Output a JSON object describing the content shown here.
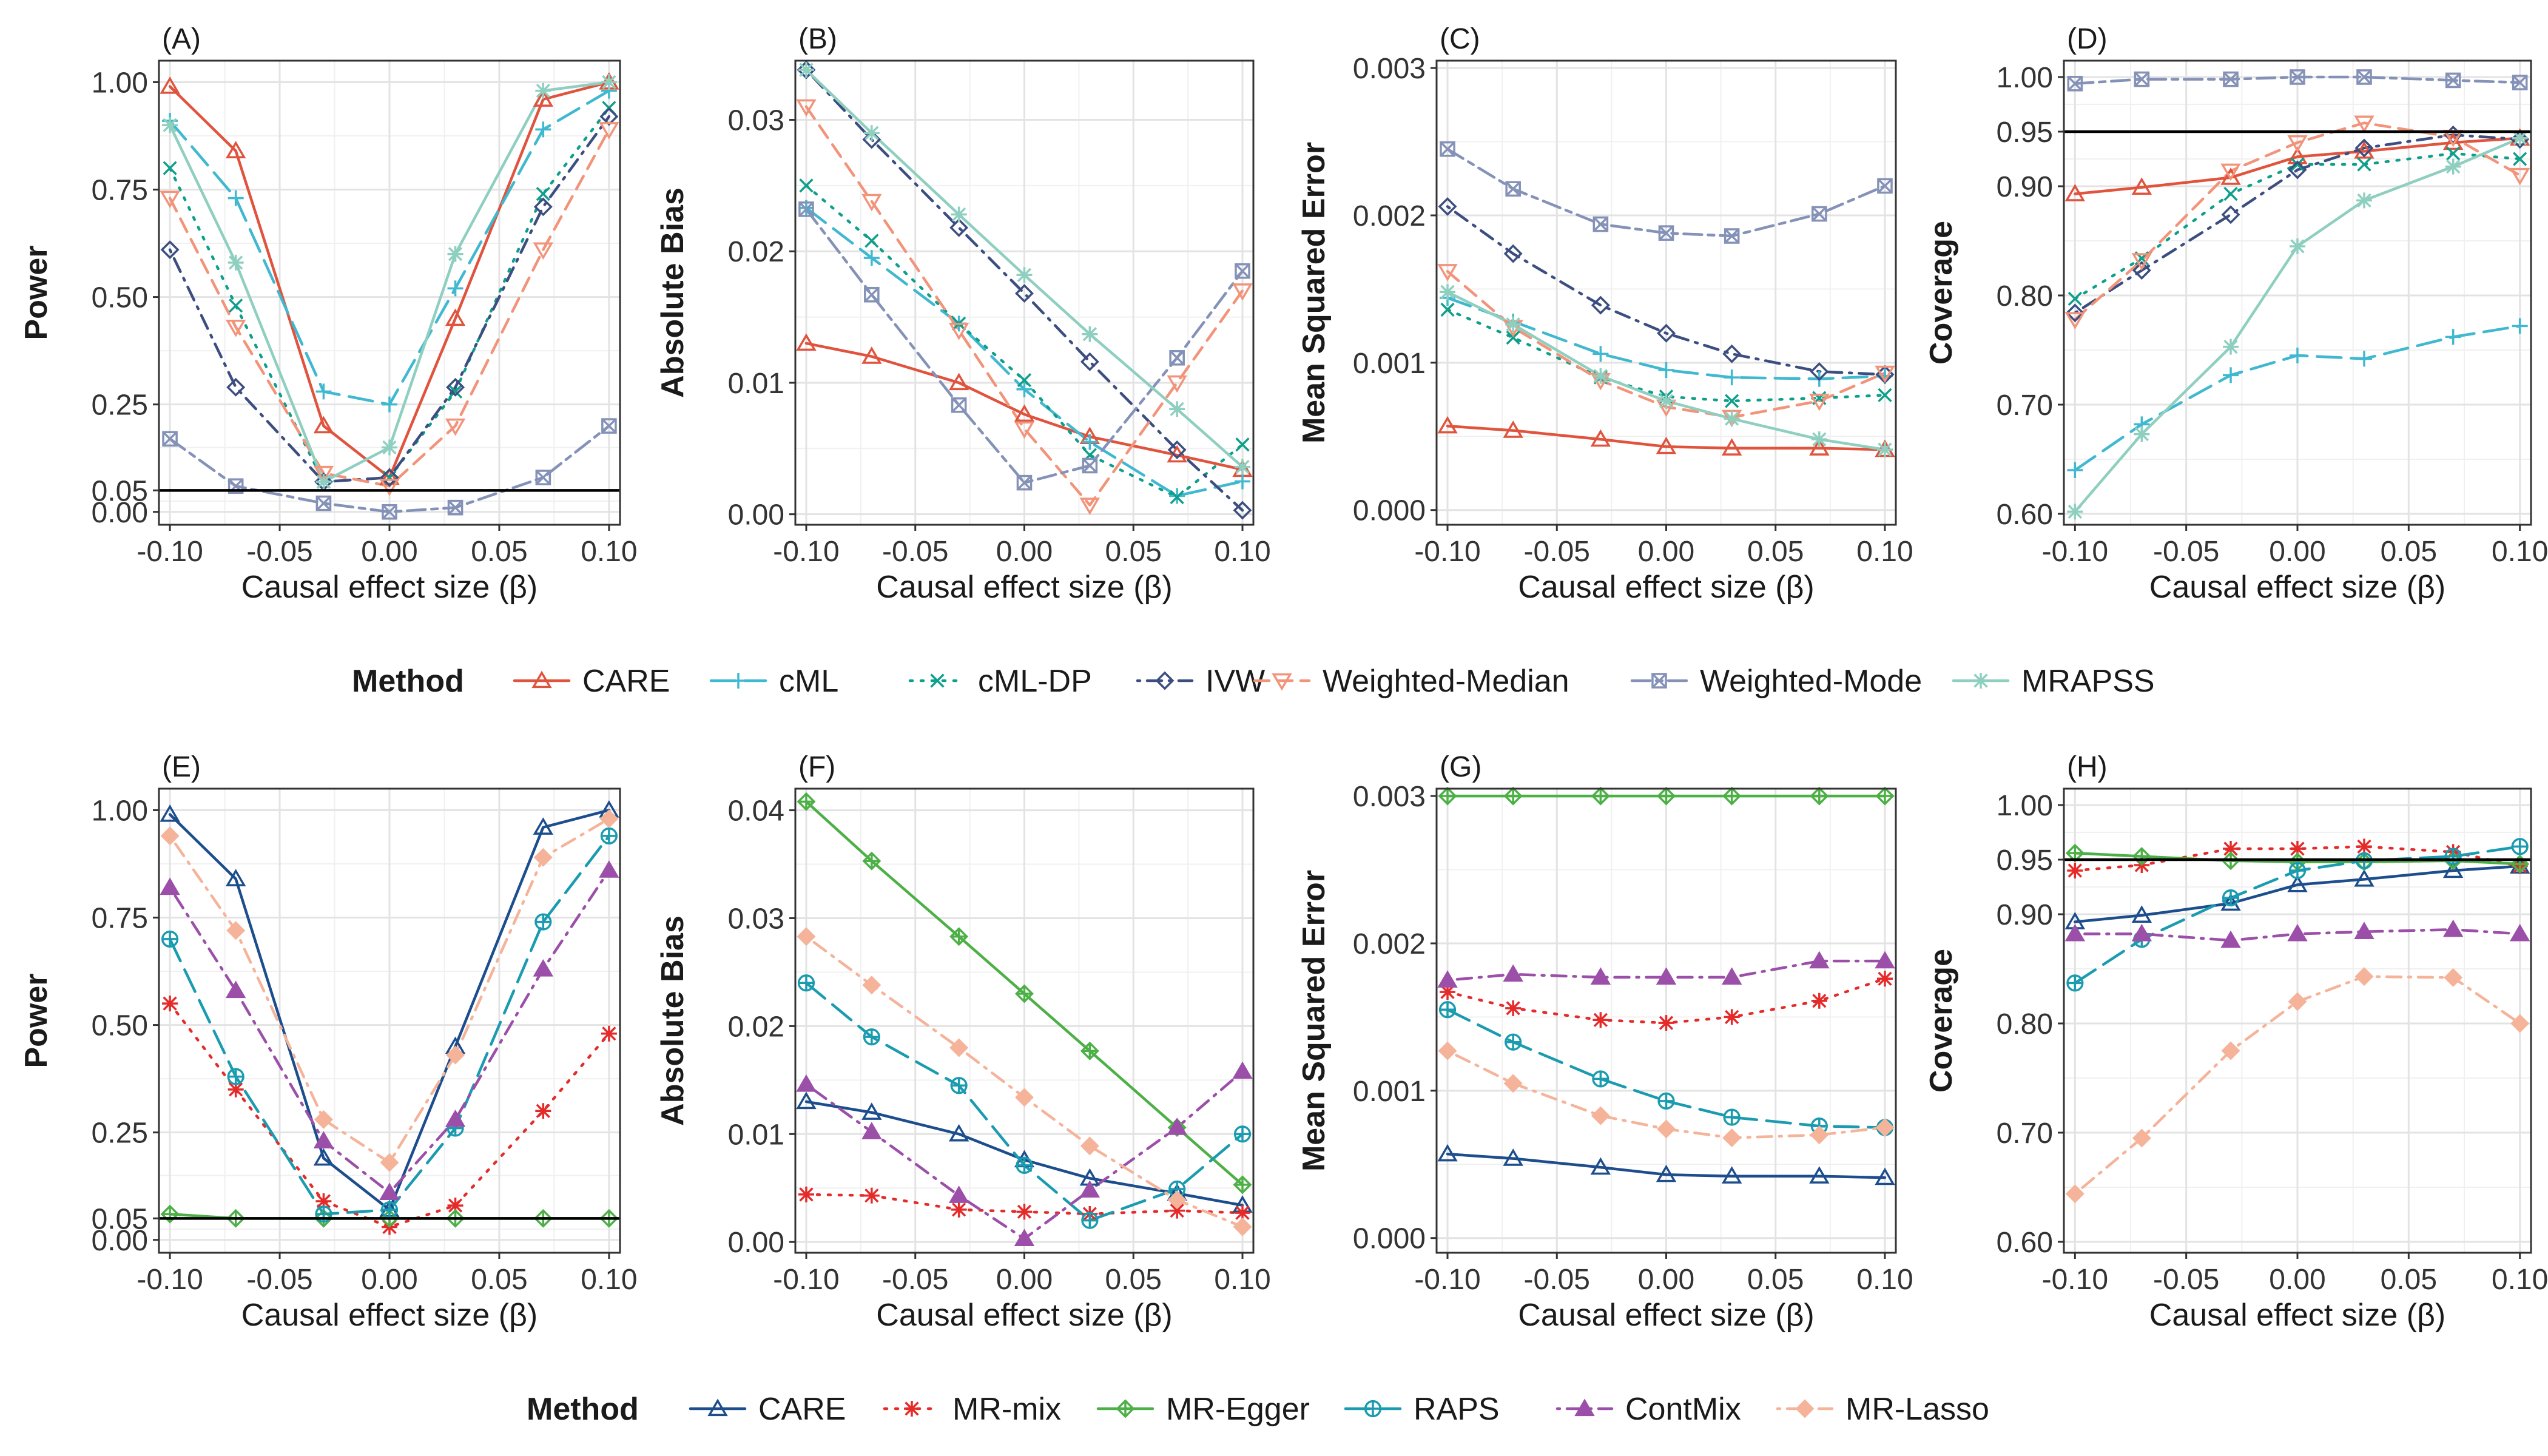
{
  "x_values": [
    -0.1,
    -0.07,
    -0.03,
    0.0,
    0.03,
    0.07,
    0.1
  ],
  "legends": [
    {
      "title": "Method",
      "entries": [
        {
          "name": "CARE",
          "color": "#E0533D",
          "dash": "solid",
          "marker": "triangle-open"
        },
        {
          "name": "cML",
          "color": "#3FB8D0",
          "dash": "longdash",
          "marker": "plus"
        },
        {
          "name": "cML-DP",
          "color": "#0E9F8A",
          "dash": "dotted",
          "marker": "cross"
        },
        {
          "name": "IVW",
          "color": "#3C4E80",
          "dash": "dotdash",
          "marker": "diamond-open"
        },
        {
          "name": "Weighted-Median",
          "color": "#F2937A",
          "dash": "dashed",
          "marker": "triangle-down-open"
        },
        {
          "name": "Weighted-Mode",
          "color": "#8592B8",
          "dash": "twodash",
          "marker": "square-cross"
        },
        {
          "name": "MRAPSS",
          "color": "#8ECFC0",
          "dash": "solid",
          "marker": "asterisk"
        }
      ]
    },
    {
      "title": "Method",
      "entries": [
        {
          "name": "CARE",
          "color": "#1C4D8C",
          "dash": "solid",
          "marker": "triangle-open"
        },
        {
          "name": "MR-mix",
          "color": "#E52A2A",
          "dash": "dotted",
          "marker": "asterisk"
        },
        {
          "name": "MR-Egger",
          "color": "#4DB046",
          "dash": "solid",
          "marker": "diamond-plus"
        },
        {
          "name": "RAPS",
          "color": "#1A9BB0",
          "dash": "longdash",
          "marker": "circle-plus"
        },
        {
          "name": "ContMix",
          "color": "#9B4FA8",
          "dash": "dotdash",
          "marker": "triangle-filled"
        },
        {
          "name": "MR-Lasso",
          "color": "#F5B39A",
          "dash": "dotdash",
          "marker": "diamond-filled"
        }
      ]
    }
  ],
  "chart_data": [
    {
      "type": "line",
      "tag": "(A)",
      "xlabel": "Causal effect size (β)",
      "ylabel": "Power",
      "xlim": [
        -0.105,
        0.105
      ],
      "ylim": [
        -0.03,
        1.05
      ],
      "xticks": [
        -0.1,
        -0.05,
        0.0,
        0.05,
        0.1
      ],
      "xtick_labels": [
        "-0.10",
        "-0.05",
        "0.00",
        "0.05",
        "0.10"
      ],
      "yticks": [
        0.0,
        0.05,
        0.25,
        0.5,
        0.75,
        1.0
      ],
      "ytick_labels": [
        "0.00",
        "0.05",
        "0.25",
        "0.50",
        "0.75",
        "1.00"
      ],
      "hline": 0.05,
      "legend_group": 0,
      "series": [
        {
          "name": "CARE",
          "values": [
            0.99,
            0.84,
            0.2,
            0.08,
            0.45,
            0.96,
            1.0
          ]
        },
        {
          "name": "cML",
          "values": [
            0.91,
            0.73,
            0.28,
            0.25,
            0.52,
            0.89,
            0.98
          ]
        },
        {
          "name": "cML-DP",
          "values": [
            0.8,
            0.48,
            0.07,
            0.08,
            0.28,
            0.74,
            0.94
          ]
        },
        {
          "name": "IVW",
          "values": [
            0.61,
            0.29,
            0.07,
            0.08,
            0.29,
            0.71,
            0.92
          ]
        },
        {
          "name": "Weighted-Median",
          "values": [
            0.73,
            0.43,
            0.09,
            0.06,
            0.2,
            0.61,
            0.89
          ]
        },
        {
          "name": "Weighted-Mode",
          "values": [
            0.17,
            0.06,
            0.02,
            0.0,
            0.01,
            0.08,
            0.2
          ]
        },
        {
          "name": "MRAPSS",
          "values": [
            0.9,
            0.58,
            0.07,
            0.15,
            0.6,
            0.98,
            1.0
          ]
        }
      ]
    },
    {
      "type": "line",
      "tag": "(B)",
      "xlabel": "Causal effect size (β)",
      "ylabel": "Absolute Bias",
      "xlim": [
        -0.105,
        0.105
      ],
      "ylim": [
        -0.0008,
        0.0345
      ],
      "xticks": [
        -0.1,
        -0.05,
        0.0,
        0.05,
        0.1
      ],
      "xtick_labels": [
        "-0.10",
        "-0.05",
        "0.00",
        "0.05",
        "0.10"
      ],
      "yticks": [
        0.0,
        0.01,
        0.02,
        0.03
      ],
      "ytick_labels": [
        "0.00",
        "0.01",
        "0.02",
        "0.03"
      ],
      "hline": null,
      "legend_group": 0,
      "series": [
        {
          "name": "CARE",
          "values": [
            0.013,
            0.012,
            0.01,
            0.0076,
            0.0059,
            0.0045,
            0.0034
          ]
        },
        {
          "name": "cML",
          "values": [
            0.0233,
            0.0195,
            0.0145,
            0.0095,
            0.0055,
            0.0014,
            0.0025
          ]
        },
        {
          "name": "cML-DP",
          "values": [
            0.025,
            0.0208,
            0.0145,
            0.0102,
            0.0045,
            0.0013,
            0.0053
          ]
        },
        {
          "name": "IVW",
          "values": [
            0.0338,
            0.0285,
            0.0218,
            0.0168,
            0.0116,
            0.0049,
            0.0003
          ]
        },
        {
          "name": "Weighted-Median",
          "values": [
            0.031,
            0.0238,
            0.014,
            0.0065,
            0.0007,
            0.01,
            0.017
          ]
        },
        {
          "name": "Weighted-Mode",
          "values": [
            0.0232,
            0.0167,
            0.0083,
            0.0024,
            0.0037,
            0.0119,
            0.0185
          ]
        },
        {
          "name": "MRAPSS",
          "values": [
            0.0338,
            0.029,
            0.0228,
            0.0182,
            0.0137,
            0.008,
            0.0036
          ]
        }
      ]
    },
    {
      "type": "line",
      "tag": "(C)",
      "xlabel": "Causal effect size (β)",
      "ylabel": "Mean Squared Error",
      "xlim": [
        -0.105,
        0.105
      ],
      "ylim": [
        -0.0001,
        0.00305
      ],
      "xticks": [
        -0.1,
        -0.05,
        0.0,
        0.05,
        0.1
      ],
      "xtick_labels": [
        "-0.10",
        "-0.05",
        "0.00",
        "0.05",
        "0.10"
      ],
      "yticks": [
        0.0,
        0.001,
        0.002,
        0.003
      ],
      "ytick_labels": [
        "0.000",
        "0.001",
        "0.002",
        "0.003"
      ],
      "hline": null,
      "legend_group": 0,
      "series": [
        {
          "name": "CARE",
          "values": [
            0.00057,
            0.00054,
            0.00048,
            0.00043,
            0.00042,
            0.00042,
            0.00041
          ]
        },
        {
          "name": "cML",
          "values": [
            0.00144,
            0.00128,
            0.00106,
            0.00095,
            0.0009,
            0.00089,
            0.00091
          ]
        },
        {
          "name": "cML-DP",
          "values": [
            0.00136,
            0.00117,
            0.0009,
            0.00077,
            0.00074,
            0.00076,
            0.00078
          ]
        },
        {
          "name": "IVW",
          "values": [
            0.00206,
            0.00174,
            0.00139,
            0.0012,
            0.00106,
            0.00094,
            0.00092
          ]
        },
        {
          "name": "Weighted-Median",
          "values": [
            0.00162,
            0.00124,
            0.00088,
            0.0007,
            0.00063,
            0.00074,
            0.00093
          ]
        },
        {
          "name": "Weighted-Mode",
          "values": [
            0.00245,
            0.00218,
            0.00194,
            0.00188,
            0.00186,
            0.00201,
            0.0022
          ]
        },
        {
          "name": "MRAPSS",
          "values": [
            0.00148,
            0.00126,
            0.00091,
            0.00074,
            0.00062,
            0.00048,
            0.00041
          ]
        }
      ]
    },
    {
      "type": "line",
      "tag": "(D)",
      "xlabel": "Causal effect size (β)",
      "ylabel": "Coverage",
      "xlim": [
        -0.105,
        0.105
      ],
      "ylim": [
        0.59,
        1.015
      ],
      "xticks": [
        -0.1,
        -0.05,
        0.0,
        0.05,
        0.1
      ],
      "xtick_labels": [
        "-0.10",
        "-0.05",
        "0.00",
        "0.05",
        "0.10"
      ],
      "yticks": [
        0.6,
        0.7,
        0.8,
        0.9,
        0.95,
        1.0
      ],
      "ytick_labels": [
        "0.60",
        "0.70",
        "0.80",
        "0.90",
        "0.95",
        "1.00"
      ],
      "hline": 0.95,
      "legend_group": 0,
      "series": [
        {
          "name": "CARE",
          "values": [
            0.893,
            0.899,
            0.908,
            0.927,
            0.932,
            0.94,
            0.944
          ]
        },
        {
          "name": "cML",
          "values": [
            0.64,
            0.682,
            0.727,
            0.745,
            0.742,
            0.762,
            0.772
          ]
        },
        {
          "name": "cML-DP",
          "values": [
            0.797,
            0.834,
            0.893,
            0.92,
            0.92,
            0.93,
            0.925
          ]
        },
        {
          "name": "IVW",
          "values": [
            0.784,
            0.823,
            0.874,
            0.915,
            0.935,
            0.947,
            0.943
          ]
        },
        {
          "name": "Weighted-Median",
          "values": [
            0.778,
            0.832,
            0.914,
            0.94,
            0.958,
            0.945,
            0.91
          ]
        },
        {
          "name": "Weighted-Mode",
          "values": [
            0.994,
            0.998,
            0.998,
            1.0,
            1.0,
            0.997,
            0.995
          ]
        },
        {
          "name": "MRAPSS",
          "values": [
            0.602,
            0.673,
            0.753,
            0.845,
            0.887,
            0.918,
            0.944
          ]
        }
      ]
    },
    {
      "type": "line",
      "tag": "(E)",
      "xlabel": "Causal effect size (β)",
      "ylabel": "Power",
      "xlim": [
        -0.105,
        0.105
      ],
      "ylim": [
        -0.03,
        1.05
      ],
      "xticks": [
        -0.1,
        -0.05,
        0.0,
        0.05,
        0.1
      ],
      "xtick_labels": [
        "-0.10",
        "-0.05",
        "0.00",
        "0.05",
        "0.10"
      ],
      "yticks": [
        0.0,
        0.05,
        0.25,
        0.5,
        0.75,
        1.0
      ],
      "ytick_labels": [
        "0.00",
        "0.05",
        "0.25",
        "0.50",
        "0.75",
        "1.00"
      ],
      "hline": 0.05,
      "legend_group": 1,
      "series": [
        {
          "name": "CARE",
          "values": [
            0.99,
            0.84,
            0.19,
            0.07,
            0.45,
            0.96,
            1.0
          ]
        },
        {
          "name": "MR-mix",
          "values": [
            0.55,
            0.35,
            0.09,
            0.03,
            0.08,
            0.3,
            0.48
          ]
        },
        {
          "name": "MR-Egger",
          "values": [
            0.06,
            0.05,
            0.05,
            0.05,
            0.05,
            0.05,
            0.05
          ]
        },
        {
          "name": "RAPS",
          "values": [
            0.7,
            0.38,
            0.06,
            0.07,
            0.26,
            0.74,
            0.94
          ]
        },
        {
          "name": "ContMix",
          "values": [
            0.82,
            0.58,
            0.23,
            0.11,
            0.28,
            0.63,
            0.86
          ]
        },
        {
          "name": "MR-Lasso",
          "values": [
            0.94,
            0.72,
            0.28,
            0.18,
            0.43,
            0.89,
            0.98
          ]
        }
      ]
    },
    {
      "type": "line",
      "tag": "(F)",
      "xlabel": "Causal effect size (β)",
      "ylabel": "Absolute Bias",
      "xlim": [
        -0.105,
        0.105
      ],
      "ylim": [
        -0.001,
        0.042
      ],
      "xticks": [
        -0.1,
        -0.05,
        0.0,
        0.05,
        0.1
      ],
      "xtick_labels": [
        "-0.10",
        "-0.05",
        "0.00",
        "0.05",
        "0.10"
      ],
      "yticks": [
        0.0,
        0.01,
        0.02,
        0.03,
        0.04
      ],
      "ytick_labels": [
        "0.00",
        "0.01",
        "0.02",
        "0.03",
        "0.04"
      ],
      "hline": null,
      "legend_group": 1,
      "series": [
        {
          "name": "CARE",
          "values": [
            0.013,
            0.012,
            0.01,
            0.0076,
            0.0059,
            0.0045,
            0.0034
          ]
        },
        {
          "name": "MR-mix",
          "values": [
            0.0044,
            0.0043,
            0.003,
            0.0028,
            0.0026,
            0.0029,
            0.0027
          ]
        },
        {
          "name": "MR-Egger",
          "values": [
            0.0408,
            0.0353,
            0.0283,
            0.023,
            0.0177,
            0.0106,
            0.0053
          ]
        },
        {
          "name": "RAPS",
          "values": [
            0.024,
            0.019,
            0.0145,
            0.0071,
            0.002,
            0.0049,
            0.01
          ]
        },
        {
          "name": "ContMix",
          "values": [
            0.0146,
            0.0102,
            0.0043,
            0.0003,
            0.0048,
            0.0106,
            0.0158
          ]
        },
        {
          "name": "MR-Lasso",
          "values": [
            0.0283,
            0.0238,
            0.018,
            0.0134,
            0.0089,
            0.0039,
            0.0014
          ]
        }
      ]
    },
    {
      "type": "line",
      "tag": "(G)",
      "xlabel": "Causal effect size (β)",
      "ylabel": "Mean Squared Error",
      "xlim": [
        -0.105,
        0.105
      ],
      "ylim": [
        -0.0001,
        0.00305
      ],
      "xticks": [
        -0.1,
        -0.05,
        0.0,
        0.05,
        0.1
      ],
      "xtick_labels": [
        "-0.10",
        "-0.05",
        "0.00",
        "0.05",
        "0.10"
      ],
      "yticks": [
        0.0,
        0.001,
        0.002,
        0.003
      ],
      "ytick_labels": [
        "0.000",
        "0.001",
        "0.002",
        "0.003"
      ],
      "hline": null,
      "legend_group": 1,
      "series": [
        {
          "name": "CARE",
          "values": [
            0.00057,
            0.00054,
            0.00048,
            0.00043,
            0.00042,
            0.00042,
            0.00041
          ]
        },
        {
          "name": "MR-mix",
          "values": [
            0.00167,
            0.00156,
            0.00148,
            0.00146,
            0.0015,
            0.00161,
            0.00176
          ]
        },
        {
          "name": "MR-Egger",
          "values": [
            0.003,
            0.003,
            0.003,
            0.003,
            0.003,
            0.003,
            0.003
          ]
        },
        {
          "name": "RAPS",
          "values": [
            0.00155,
            0.00133,
            0.00108,
            0.00093,
            0.00082,
            0.00076,
            0.00075
          ]
        },
        {
          "name": "ContMix",
          "values": [
            0.00175,
            0.00179,
            0.00177,
            0.00177,
            0.00177,
            0.00188,
            0.00188
          ]
        },
        {
          "name": "MR-Lasso",
          "values": [
            0.00127,
            0.00105,
            0.00083,
            0.00074,
            0.00068,
            0.0007,
            0.00075
          ]
        }
      ]
    },
    {
      "type": "line",
      "tag": "(H)",
      "xlabel": "Causal effect size (β)",
      "ylabel": "Coverage",
      "xlim": [
        -0.105,
        0.105
      ],
      "ylim": [
        0.59,
        1.015
      ],
      "xticks": [
        -0.1,
        -0.05,
        0.0,
        0.05,
        0.1
      ],
      "xtick_labels": [
        "-0.10",
        "-0.05",
        "0.00",
        "0.05",
        "0.10"
      ],
      "yticks": [
        0.6,
        0.7,
        0.8,
        0.9,
        0.95,
        1.0
      ],
      "ytick_labels": [
        "0.60",
        "0.70",
        "0.80",
        "0.90",
        "0.95",
        "1.00"
      ],
      "hline": 0.95,
      "legend_group": 1,
      "series": [
        {
          "name": "CARE",
          "values": [
            0.893,
            0.899,
            0.91,
            0.927,
            0.932,
            0.94,
            0.944
          ]
        },
        {
          "name": "MR-mix",
          "values": [
            0.94,
            0.945,
            0.96,
            0.96,
            0.962,
            0.957,
            0.944
          ]
        },
        {
          "name": "MR-Egger",
          "values": [
            0.956,
            0.953,
            0.949,
            0.948,
            0.948,
            0.949,
            0.946
          ]
        },
        {
          "name": "RAPS",
          "values": [
            0.837,
            0.877,
            0.915,
            0.94,
            0.949,
            0.953,
            0.962
          ]
        },
        {
          "name": "ContMix",
          "values": [
            0.882,
            0.882,
            0.876,
            0.882,
            0.884,
            0.886,
            0.882
          ]
        },
        {
          "name": "MR-Lasso",
          "values": [
            0.644,
            0.695,
            0.775,
            0.82,
            0.843,
            0.842,
            0.8
          ]
        }
      ]
    }
  ]
}
